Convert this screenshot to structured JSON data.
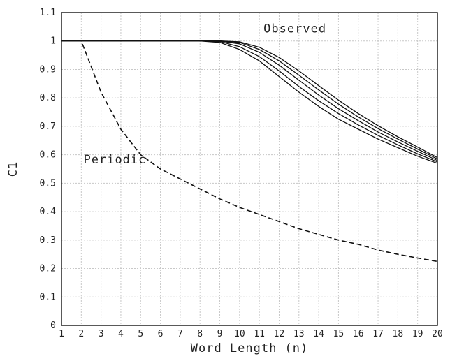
{
  "chart_data": {
    "type": "line",
    "title": "",
    "xlabel": "Word Length (n)",
    "ylabel": "C1",
    "xlim": [
      1,
      20
    ],
    "ylim": [
      0,
      1.1
    ],
    "x_ticks": [
      "1",
      "2",
      "3",
      "4",
      "5",
      "6",
      "7",
      "8",
      "9",
      "10",
      "11",
      "12",
      "13",
      "14",
      "15",
      "16",
      "17",
      "18",
      "19",
      "20"
    ],
    "y_ticks": [
      "0",
      "0.1",
      "0.2",
      "0.3",
      "0.4",
      "0.5",
      "0.6",
      "0.7",
      "0.8",
      "0.9",
      "1",
      "1.1"
    ],
    "grid": true,
    "annotations": [
      {
        "text": "Observed",
        "x": 12.8,
        "y": 1.03
      },
      {
        "text": "Periodic",
        "x": 3.7,
        "y": 0.57
      }
    ],
    "series": [
      {
        "style": "dashed",
        "x": [
          1,
          2,
          3,
          4,
          5,
          6,
          7,
          8,
          9,
          10,
          11,
          12,
          13,
          14,
          15,
          16,
          17,
          18,
          19,
          20
        ],
        "y": [
          1.0,
          1.0,
          0.82,
          0.69,
          0.6,
          0.55,
          0.515,
          0.48,
          0.445,
          0.415,
          0.39,
          0.365,
          0.34,
          0.32,
          0.3,
          0.285,
          0.265,
          0.25,
          0.237,
          0.225
        ]
      },
      {
        "style": "solid",
        "x": [
          1,
          2,
          3,
          4,
          5,
          6,
          7,
          8,
          9,
          10,
          11,
          12,
          13,
          14,
          15,
          16,
          17,
          18,
          19,
          20
        ],
        "y": [
          1.0,
          1.0,
          1.0,
          1.0,
          1.0,
          1.0,
          1.0,
          1.0,
          0.995,
          0.97,
          0.93,
          0.875,
          0.82,
          0.77,
          0.725,
          0.69,
          0.655,
          0.625,
          0.595,
          0.57
        ]
      },
      {
        "style": "solid",
        "x": [
          1,
          2,
          3,
          4,
          5,
          6,
          7,
          8,
          9,
          10,
          11,
          12,
          13,
          14,
          15,
          16,
          17,
          18,
          19,
          20
        ],
        "y": [
          1.0,
          1.0,
          1.0,
          1.0,
          1.0,
          1.0,
          1.0,
          1.0,
          0.998,
          0.98,
          0.945,
          0.895,
          0.84,
          0.79,
          0.745,
          0.705,
          0.668,
          0.635,
          0.603,
          0.575
        ]
      },
      {
        "style": "solid",
        "x": [
          1,
          2,
          3,
          4,
          5,
          6,
          7,
          8,
          9,
          10,
          11,
          12,
          13,
          14,
          15,
          16,
          17,
          18,
          19,
          20
        ],
        "y": [
          1.0,
          1.0,
          1.0,
          1.0,
          1.0,
          1.0,
          1.0,
          1.0,
          1.0,
          0.99,
          0.96,
          0.915,
          0.862,
          0.81,
          0.762,
          0.72,
          0.68,
          0.645,
          0.612,
          0.58
        ]
      },
      {
        "style": "solid",
        "x": [
          1,
          2,
          3,
          4,
          5,
          6,
          7,
          8,
          9,
          10,
          11,
          12,
          13,
          14,
          15,
          16,
          17,
          18,
          19,
          20
        ],
        "y": [
          1.0,
          1.0,
          1.0,
          1.0,
          1.0,
          1.0,
          1.0,
          1.0,
          1.0,
          0.995,
          0.97,
          0.93,
          0.88,
          0.828,
          0.778,
          0.733,
          0.692,
          0.655,
          0.62,
          0.585
        ]
      },
      {
        "style": "solid",
        "x": [
          1,
          2,
          3,
          4,
          5,
          6,
          7,
          8,
          9,
          10,
          11,
          12,
          13,
          14,
          15,
          16,
          17,
          18,
          19,
          20
        ],
        "y": [
          1.0,
          1.0,
          1.0,
          1.0,
          1.0,
          1.0,
          1.0,
          1.0,
          1.0,
          0.997,
          0.978,
          0.942,
          0.895,
          0.843,
          0.792,
          0.745,
          0.702,
          0.663,
          0.627,
          0.59
        ]
      }
    ]
  }
}
